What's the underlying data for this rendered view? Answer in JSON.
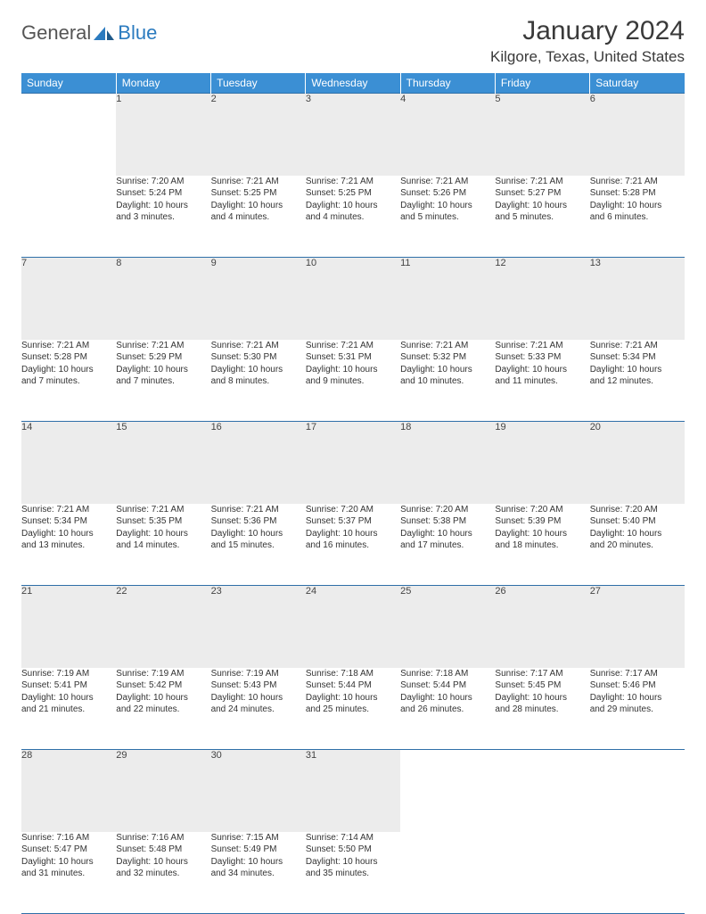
{
  "logo": {
    "general": "General",
    "blue": "Blue"
  },
  "title": "January 2024",
  "location": "Kilgore, Texas, United States",
  "colors": {
    "header_bg": "#3b8fd4",
    "header_text": "#ffffff",
    "daynum_bg": "#ececec",
    "rule": "#2f6fa8",
    "logo_blue": "#2b7bbf",
    "text": "#333333"
  },
  "weekdays": [
    "Sunday",
    "Monday",
    "Tuesday",
    "Wednesday",
    "Thursday",
    "Friday",
    "Saturday"
  ],
  "weeks": [
    {
      "nums": [
        "",
        "1",
        "2",
        "3",
        "4",
        "5",
        "6"
      ],
      "cells": [
        {},
        {
          "sunrise": "Sunrise: 7:20 AM",
          "sunset": "Sunset: 5:24 PM",
          "day1": "Daylight: 10 hours",
          "day2": "and 3 minutes."
        },
        {
          "sunrise": "Sunrise: 7:21 AM",
          "sunset": "Sunset: 5:25 PM",
          "day1": "Daylight: 10 hours",
          "day2": "and 4 minutes."
        },
        {
          "sunrise": "Sunrise: 7:21 AM",
          "sunset": "Sunset: 5:25 PM",
          "day1": "Daylight: 10 hours",
          "day2": "and 4 minutes."
        },
        {
          "sunrise": "Sunrise: 7:21 AM",
          "sunset": "Sunset: 5:26 PM",
          "day1": "Daylight: 10 hours",
          "day2": "and 5 minutes."
        },
        {
          "sunrise": "Sunrise: 7:21 AM",
          "sunset": "Sunset: 5:27 PM",
          "day1": "Daylight: 10 hours",
          "day2": "and 5 minutes."
        },
        {
          "sunrise": "Sunrise: 7:21 AM",
          "sunset": "Sunset: 5:28 PM",
          "day1": "Daylight: 10 hours",
          "day2": "and 6 minutes."
        }
      ]
    },
    {
      "nums": [
        "7",
        "8",
        "9",
        "10",
        "11",
        "12",
        "13"
      ],
      "cells": [
        {
          "sunrise": "Sunrise: 7:21 AM",
          "sunset": "Sunset: 5:28 PM",
          "day1": "Daylight: 10 hours",
          "day2": "and 7 minutes."
        },
        {
          "sunrise": "Sunrise: 7:21 AM",
          "sunset": "Sunset: 5:29 PM",
          "day1": "Daylight: 10 hours",
          "day2": "and 7 minutes."
        },
        {
          "sunrise": "Sunrise: 7:21 AM",
          "sunset": "Sunset: 5:30 PM",
          "day1": "Daylight: 10 hours",
          "day2": "and 8 minutes."
        },
        {
          "sunrise": "Sunrise: 7:21 AM",
          "sunset": "Sunset: 5:31 PM",
          "day1": "Daylight: 10 hours",
          "day2": "and 9 minutes."
        },
        {
          "sunrise": "Sunrise: 7:21 AM",
          "sunset": "Sunset: 5:32 PM",
          "day1": "Daylight: 10 hours",
          "day2": "and 10 minutes."
        },
        {
          "sunrise": "Sunrise: 7:21 AM",
          "sunset": "Sunset: 5:33 PM",
          "day1": "Daylight: 10 hours",
          "day2": "and 11 minutes."
        },
        {
          "sunrise": "Sunrise: 7:21 AM",
          "sunset": "Sunset: 5:34 PM",
          "day1": "Daylight: 10 hours",
          "day2": "and 12 minutes."
        }
      ]
    },
    {
      "nums": [
        "14",
        "15",
        "16",
        "17",
        "18",
        "19",
        "20"
      ],
      "cells": [
        {
          "sunrise": "Sunrise: 7:21 AM",
          "sunset": "Sunset: 5:34 PM",
          "day1": "Daylight: 10 hours",
          "day2": "and 13 minutes."
        },
        {
          "sunrise": "Sunrise: 7:21 AM",
          "sunset": "Sunset: 5:35 PM",
          "day1": "Daylight: 10 hours",
          "day2": "and 14 minutes."
        },
        {
          "sunrise": "Sunrise: 7:21 AM",
          "sunset": "Sunset: 5:36 PM",
          "day1": "Daylight: 10 hours",
          "day2": "and 15 minutes."
        },
        {
          "sunrise": "Sunrise: 7:20 AM",
          "sunset": "Sunset: 5:37 PM",
          "day1": "Daylight: 10 hours",
          "day2": "and 16 minutes."
        },
        {
          "sunrise": "Sunrise: 7:20 AM",
          "sunset": "Sunset: 5:38 PM",
          "day1": "Daylight: 10 hours",
          "day2": "and 17 minutes."
        },
        {
          "sunrise": "Sunrise: 7:20 AM",
          "sunset": "Sunset: 5:39 PM",
          "day1": "Daylight: 10 hours",
          "day2": "and 18 minutes."
        },
        {
          "sunrise": "Sunrise: 7:20 AM",
          "sunset": "Sunset: 5:40 PM",
          "day1": "Daylight: 10 hours",
          "day2": "and 20 minutes."
        }
      ]
    },
    {
      "nums": [
        "21",
        "22",
        "23",
        "24",
        "25",
        "26",
        "27"
      ],
      "cells": [
        {
          "sunrise": "Sunrise: 7:19 AM",
          "sunset": "Sunset: 5:41 PM",
          "day1": "Daylight: 10 hours",
          "day2": "and 21 minutes."
        },
        {
          "sunrise": "Sunrise: 7:19 AM",
          "sunset": "Sunset: 5:42 PM",
          "day1": "Daylight: 10 hours",
          "day2": "and 22 minutes."
        },
        {
          "sunrise": "Sunrise: 7:19 AM",
          "sunset": "Sunset: 5:43 PM",
          "day1": "Daylight: 10 hours",
          "day2": "and 24 minutes."
        },
        {
          "sunrise": "Sunrise: 7:18 AM",
          "sunset": "Sunset: 5:44 PM",
          "day1": "Daylight: 10 hours",
          "day2": "and 25 minutes."
        },
        {
          "sunrise": "Sunrise: 7:18 AM",
          "sunset": "Sunset: 5:44 PM",
          "day1": "Daylight: 10 hours",
          "day2": "and 26 minutes."
        },
        {
          "sunrise": "Sunrise: 7:17 AM",
          "sunset": "Sunset: 5:45 PM",
          "day1": "Daylight: 10 hours",
          "day2": "and 28 minutes."
        },
        {
          "sunrise": "Sunrise: 7:17 AM",
          "sunset": "Sunset: 5:46 PM",
          "day1": "Daylight: 10 hours",
          "day2": "and 29 minutes."
        }
      ]
    },
    {
      "nums": [
        "28",
        "29",
        "30",
        "31",
        "",
        "",
        ""
      ],
      "cells": [
        {
          "sunrise": "Sunrise: 7:16 AM",
          "sunset": "Sunset: 5:47 PM",
          "day1": "Daylight: 10 hours",
          "day2": "and 31 minutes."
        },
        {
          "sunrise": "Sunrise: 7:16 AM",
          "sunset": "Sunset: 5:48 PM",
          "day1": "Daylight: 10 hours",
          "day2": "and 32 minutes."
        },
        {
          "sunrise": "Sunrise: 7:15 AM",
          "sunset": "Sunset: 5:49 PM",
          "day1": "Daylight: 10 hours",
          "day2": "and 34 minutes."
        },
        {
          "sunrise": "Sunrise: 7:14 AM",
          "sunset": "Sunset: 5:50 PM",
          "day1": "Daylight: 10 hours",
          "day2": "and 35 minutes."
        },
        {},
        {},
        {}
      ]
    }
  ]
}
